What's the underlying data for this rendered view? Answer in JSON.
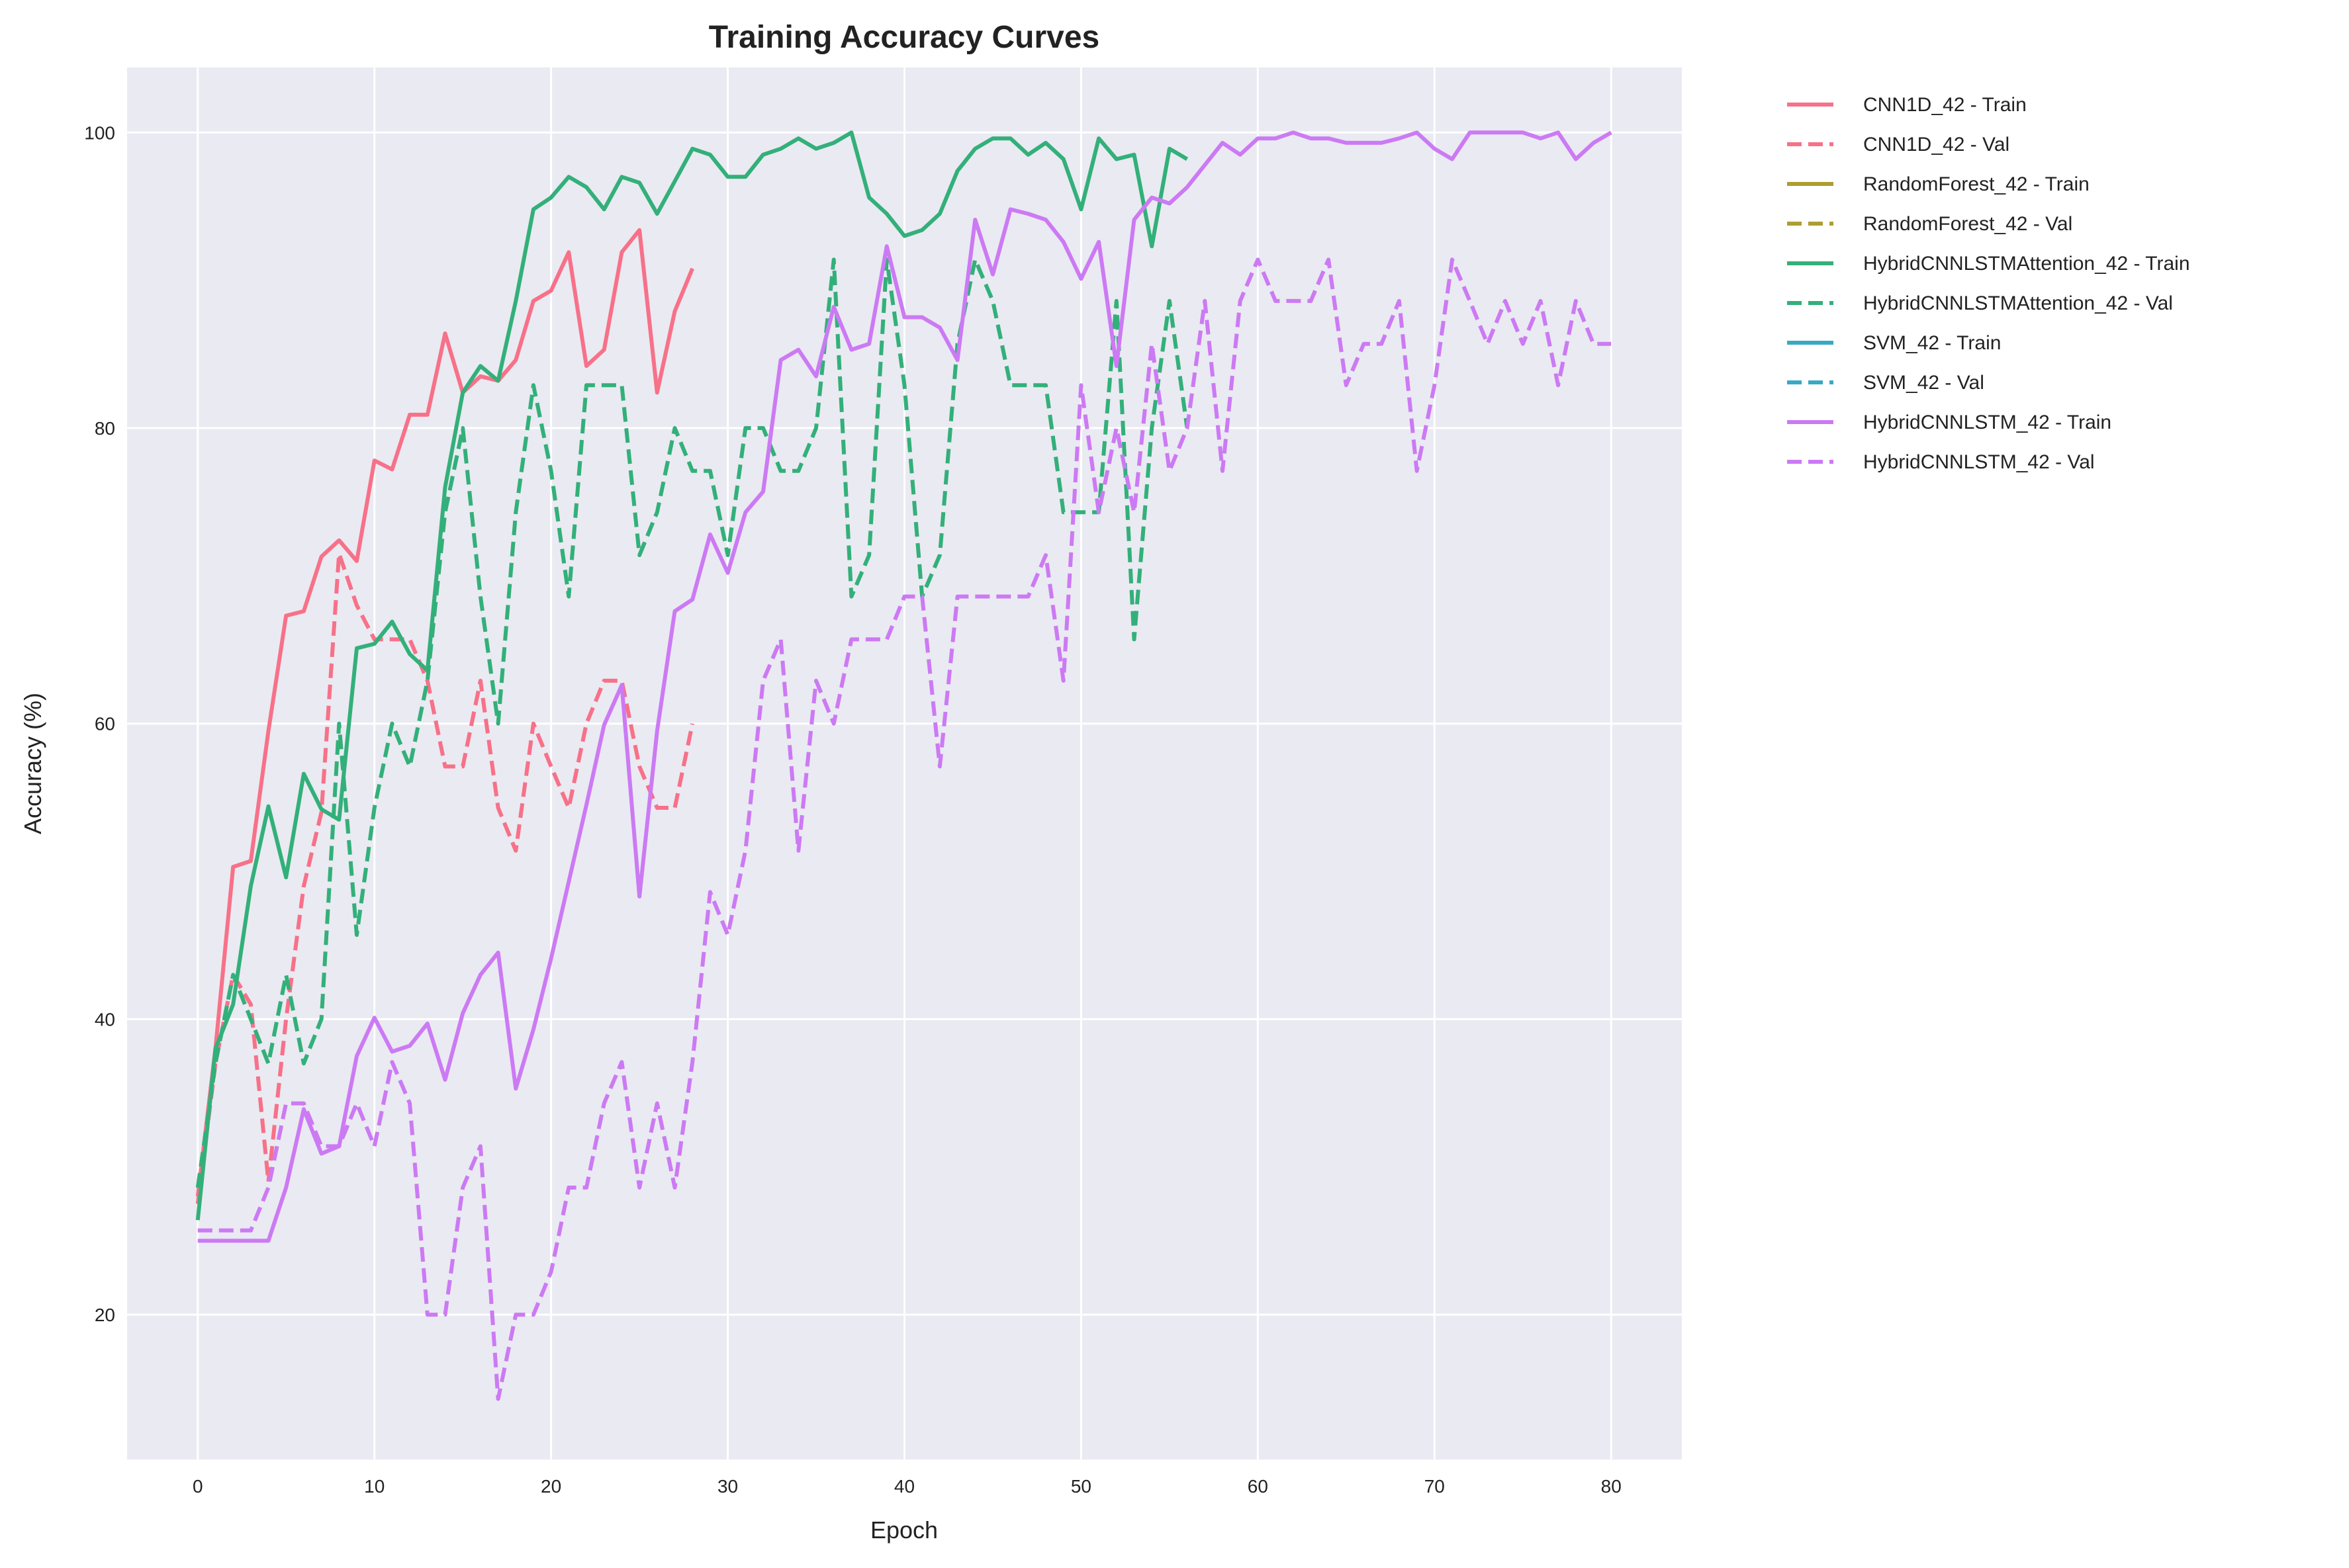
{
  "chart_data": {
    "type": "line",
    "title": "Training Accuracy Curves",
    "xlabel": "Epoch",
    "ylabel": "Accuracy (%)",
    "xlim": [
      -4,
      84
    ],
    "ylim": [
      10.2,
      104.4
    ],
    "xticks": [
      0,
      10,
      20,
      30,
      40,
      50,
      60,
      70,
      80
    ],
    "yticks": [
      20,
      40,
      60,
      80,
      100
    ],
    "grid": true,
    "legend_position": "outside-top-right",
    "series": [
      {
        "name": "CNN1D_42 - Train",
        "color": "#f77189",
        "dash": "solid",
        "values": [
          28,
          38,
          50.3,
          50.7,
          59.5,
          67.3,
          67.6,
          71.3,
          72.4,
          71,
          77.8,
          77.2,
          80.9,
          80.9,
          86.4,
          82.4,
          83.5,
          83.2,
          84.6,
          88.6,
          89.3,
          91.9,
          84.2,
          85.3,
          91.9,
          93.4,
          82.4,
          87.9,
          90.8
        ]
      },
      {
        "name": "CNN1D_42 - Val",
        "color": "#f77189",
        "dash": "dashed",
        "values": [
          27.5,
          37,
          43,
          41,
          29,
          40,
          49,
          54,
          71.5,
          68,
          65.7,
          65.7,
          65.7,
          62.9,
          57.1,
          57.1,
          62.9,
          54.3,
          51.4,
          60,
          57.1,
          54.3,
          60,
          62.9,
          62.9,
          57.1,
          54.3,
          54.3,
          60
        ]
      },
      {
        "name": "RandomForest_42 - Train",
        "color": "#ae9d31",
        "dash": "solid",
        "values": []
      },
      {
        "name": "RandomForest_42 - Val",
        "color": "#ae9d31",
        "dash": "dashed",
        "values": []
      },
      {
        "name": "HybridCNNLSTMAttention_42 - Train",
        "color": "#33b07a",
        "dash": "solid",
        "values": [
          26.4,
          38,
          41,
          49,
          54.4,
          49.6,
          56.6,
          54.2,
          53.5,
          65.1,
          65.4,
          66.9,
          64.7,
          63.6,
          76,
          82.4,
          84.2,
          83.2,
          88.6,
          94.8,
          95.6,
          97,
          96.3,
          94.8,
          97,
          96.6,
          94.5,
          96.7,
          98.9,
          98.5,
          97,
          97,
          98.5,
          98.9,
          99.6,
          98.9,
          99.3,
          100,
          95.6,
          94.5,
          93,
          93.4,
          94.5,
          97.4,
          98.9,
          99.6,
          99.6,
          98.5,
          99.3,
          98.2,
          94.8,
          99.6,
          98.2,
          98.5,
          92.3,
          98.9,
          98.2
        ]
      },
      {
        "name": "HybridCNNLSTMAttention_42 - Val",
        "color": "#33b07a",
        "dash": "dashed",
        "values": [
          28.6,
          37,
          43,
          40,
          37,
          43,
          37,
          40,
          60,
          45.7,
          54.3,
          60,
          57.1,
          62.9,
          74.3,
          80,
          68.6,
          60,
          74.3,
          82.9,
          77.1,
          68.6,
          82.9,
          82.9,
          82.9,
          71.4,
          74.3,
          80,
          77.1,
          77.1,
          71.4,
          80,
          80,
          77.1,
          77.1,
          80,
          91.4,
          68.6,
          71.4,
          91.4,
          82.9,
          68.6,
          71.4,
          85.7,
          91.4,
          88.6,
          82.9,
          82.9,
          82.9,
          74.3,
          74.3,
          74.3,
          88.6,
          65.7,
          80,
          88.6,
          80
        ]
      },
      {
        "name": "SVM_42 - Train",
        "color": "#38a9c5",
        "dash": "solid",
        "values": []
      },
      {
        "name": "SVM_42 - Val",
        "color": "#38a9c5",
        "dash": "dashed",
        "values": []
      },
      {
        "name": "HybridCNNLSTM_42 - Train",
        "color": "#cc7af4",
        "dash": "solid",
        "values": [
          25,
          25,
          25,
          25,
          25,
          28.6,
          33.9,
          30.9,
          31.4,
          37.5,
          40.1,
          37.8,
          38.2,
          39.7,
          35.9,
          40.4,
          43,
          44.5,
          35.3,
          39.3,
          44.1,
          49.3,
          54.5,
          59.9,
          62.6,
          48.3,
          59.5,
          67.6,
          68.4,
          72.8,
          70.2,
          74.3,
          75.7,
          84.6,
          85.3,
          83.5,
          88.2,
          85.3,
          85.7,
          92.3,
          87.5,
          87.5,
          86.8,
          84.6,
          94.1,
          90.4,
          94.8,
          94.5,
          94.1,
          92.6,
          90.1,
          92.6,
          84.2,
          94.1,
          95.6,
          95.2,
          96.3,
          97.8,
          99.3,
          98.5,
          99.6,
          99.6,
          100,
          99.6,
          99.6,
          99.3,
          99.3,
          99.3,
          99.6,
          100,
          98.9,
          98.2,
          100,
          100,
          100,
          100,
          99.6,
          100,
          98.2,
          99.3,
          100
        ]
      },
      {
        "name": "HybridCNNLSTM_42 - Val",
        "color": "#cc7af4",
        "dash": "dashed",
        "values": [
          25.7,
          25.7,
          25.7,
          25.7,
          28.6,
          34.3,
          34.3,
          31.4,
          31.4,
          34.3,
          31.4,
          37.1,
          34.3,
          20,
          20,
          28.6,
          31.4,
          14.3,
          20,
          20,
          22.9,
          28.6,
          28.6,
          34.3,
          37.1,
          28.6,
          34.3,
          28.6,
          37.1,
          48.6,
          45.7,
          51.4,
          62.9,
          65.7,
          51.4,
          62.9,
          60,
          65.7,
          65.7,
          65.7,
          68.6,
          68.6,
          57.1,
          68.6,
          68.6,
          68.6,
          68.6,
          68.6,
          71.4,
          62.9,
          82.9,
          74.3,
          80,
          74.3,
          85.7,
          77.1,
          80,
          88.6,
          77.1,
          88.6,
          91.4,
          88.6,
          88.6,
          88.6,
          91.4,
          82.9,
          85.7,
          85.7,
          88.6,
          77.1,
          82.9,
          91.4,
          88.6,
          85.7,
          88.6,
          85.7,
          88.6,
          82.9,
          88.6,
          85.7,
          85.7
        ]
      }
    ]
  }
}
